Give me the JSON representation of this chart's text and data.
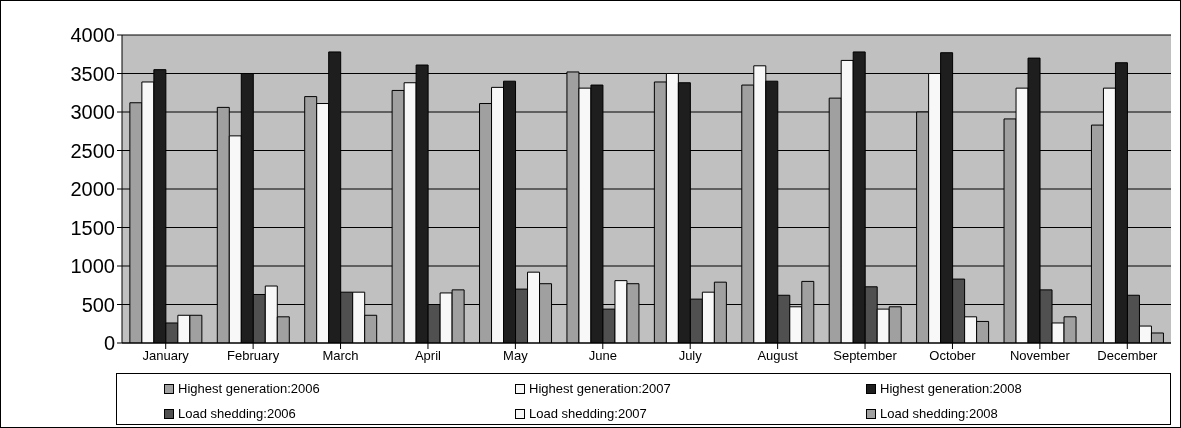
{
  "chart_data": {
    "type": "bar",
    "categories": [
      "January",
      "February",
      "March",
      "April",
      "May",
      "June",
      "July",
      "August",
      "September",
      "October",
      "November",
      "December"
    ],
    "series": [
      {
        "name": "Highest generation:2006",
        "color": "#a0a0a0",
        "values": [
          3120,
          3060,
          3200,
          3280,
          3110,
          3520,
          3390,
          3350,
          3180,
          3000,
          2910,
          2830
        ]
      },
      {
        "name": "Highest generation:2007",
        "color": "#f8f8f8",
        "values": [
          3390,
          2690,
          3110,
          3380,
          3320,
          3310,
          3500,
          3600,
          3670,
          3500,
          3310,
          3310
        ]
      },
      {
        "name": "Highest generation:2008",
        "color": "#1e1e1e",
        "values": [
          3550,
          3500,
          3780,
          3610,
          3400,
          3350,
          3380,
          3400,
          3780,
          3770,
          3700,
          3640
        ]
      },
      {
        "name": "Load shedding:2006",
        "color": "#505050",
        "values": [
          260,
          630,
          660,
          500,
          700,
          440,
          570,
          620,
          730,
          830,
          690,
          620
        ]
      },
      {
        "name": "Load shedding:2007",
        "color": "#f8f8f8",
        "values": [
          360,
          740,
          660,
          650,
          920,
          810,
          660,
          470,
          440,
          340,
          260,
          220
        ]
      },
      {
        "name": "Load shedding:2008",
        "color": "#a0a0a0",
        "values": [
          360,
          340,
          360,
          690,
          770,
          770,
          790,
          800,
          470,
          280,
          340,
          130
        ]
      }
    ],
    "ylim": [
      0,
      4000
    ],
    "yticks": [
      0,
      500,
      1000,
      1500,
      2000,
      2500,
      3000,
      3500,
      4000
    ],
    "grid": "y",
    "legend": "bottom"
  }
}
